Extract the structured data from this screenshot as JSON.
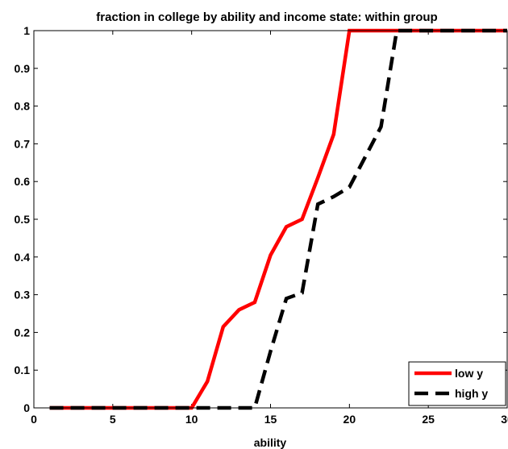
{
  "chart_data": {
    "type": "line",
    "title": "fraction in college by ability and income state: within group",
    "xlabel": "ability",
    "ylabel": "",
    "xlim": [
      0,
      30
    ],
    "ylim": [
      0,
      1
    ],
    "xticks": [
      0,
      5,
      10,
      15,
      20,
      25,
      30
    ],
    "yticks": [
      0,
      0.1,
      0.2,
      0.3,
      0.4,
      0.5,
      0.6,
      0.7,
      0.8,
      0.9,
      1
    ],
    "grid": false,
    "legend_position": "bottom-right",
    "series": [
      {
        "name": "low y",
        "color": "#ff0000",
        "style": "solid",
        "x": [
          1,
          2,
          3,
          4,
          5,
          6,
          7,
          8,
          9,
          10,
          11,
          12,
          13,
          14,
          15,
          16,
          17,
          18,
          19,
          20,
          21,
          22,
          23,
          24,
          25,
          26,
          27,
          28,
          29,
          30
        ],
        "y": [
          0,
          0,
          0,
          0,
          0,
          0,
          0,
          0,
          0,
          0,
          0.07,
          0.215,
          0.26,
          0.28,
          0.405,
          0.48,
          0.5,
          0.61,
          0.725,
          1,
          1,
          1,
          1,
          1,
          1,
          1,
          1,
          1,
          1,
          1
        ]
      },
      {
        "name": "high y",
        "color": "#000000",
        "style": "dashed",
        "x": [
          1,
          2,
          3,
          4,
          5,
          6,
          7,
          8,
          9,
          10,
          11,
          12,
          13,
          14,
          15,
          16,
          17,
          18,
          19,
          20,
          21,
          22,
          23,
          24,
          25,
          26,
          27,
          28,
          29,
          30
        ],
        "y": [
          0,
          0,
          0,
          0,
          0,
          0,
          0,
          0,
          0,
          0,
          0,
          0,
          0,
          0,
          0.15,
          0.29,
          0.305,
          0.54,
          0.56,
          0.585,
          0.665,
          0.745,
          1,
          1,
          1,
          1,
          1,
          1,
          1,
          1
        ]
      }
    ]
  }
}
